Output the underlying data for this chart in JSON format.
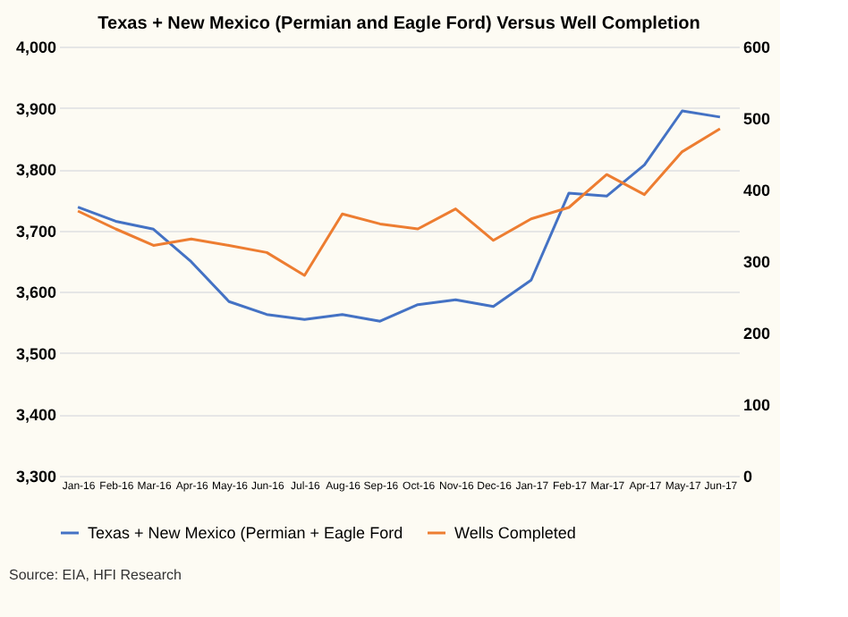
{
  "chart_data": {
    "type": "line",
    "title": "Texas + New Mexico (Permian and Eagle Ford) Versus Well Completion",
    "categories": [
      "Jan-16",
      "Feb-16",
      "Mar-16",
      "Apr-16",
      "May-16",
      "Jun-16",
      "Jul-16",
      "Aug-16",
      "Sep-16",
      "Oct-16",
      "Nov-16",
      "Dec-16",
      "Jan-17",
      "Feb-17",
      "Mar-17",
      "Apr-17",
      "May-17",
      "Jun-17"
    ],
    "series": [
      {
        "name": "Texas + New Mexico (Permian + Eagle Ford",
        "color": "#4472c4",
        "values": [
          3738,
          3715,
          3702,
          3649,
          3584,
          3563,
          3555,
          3563,
          3552,
          3579,
          3587,
          3576,
          3619,
          3761,
          3756,
          3807,
          3895,
          3885
        ]
      },
      {
        "name": "Wells Completed",
        "color": "#ed7d31",
        "axis": "y2",
        "values": [
          370,
          345,
          322,
          331,
          322,
          312,
          280,
          366,
          352,
          345,
          373,
          329,
          359,
          375,
          421,
          393,
          453,
          485
        ]
      }
    ],
    "ylim": [
      3300,
      4000
    ],
    "yticks": [
      {
        "value": 3300,
        "label": "3,300"
      },
      {
        "value": 3400,
        "label": "3,400"
      },
      {
        "value": 3500,
        "label": "3,500"
      },
      {
        "value": 3600,
        "label": "3,600"
      },
      {
        "value": 3700,
        "label": "3,700"
      },
      {
        "value": 3800,
        "label": "3,800"
      },
      {
        "value": 3900,
        "label": "3,900"
      },
      {
        "value": 4000,
        "label": "4,000"
      }
    ],
    "y2lim": [
      0,
      600
    ],
    "y2ticks": [
      0,
      100,
      200,
      300,
      400,
      500,
      600
    ],
    "grid": "y",
    "legend": "bottom",
    "marker": "none",
    "line_style": "solid",
    "annotations": [
      "Source: EIA, HFI Research"
    ]
  }
}
